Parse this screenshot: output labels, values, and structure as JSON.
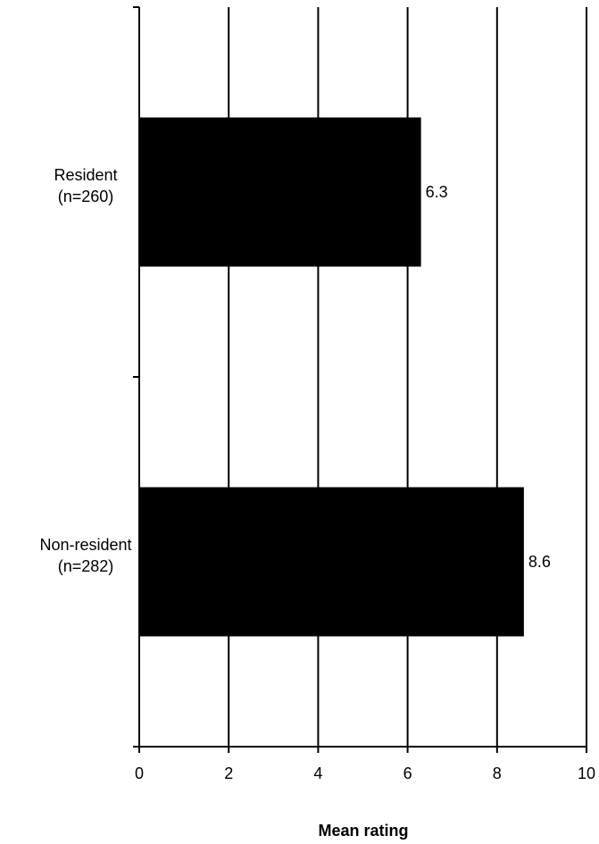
{
  "chart_data": {
    "type": "bar",
    "orientation": "horizontal",
    "categories": [
      [
        "Resident",
        "(n=260)"
      ],
      [
        "Non-resident",
        "(n=282)"
      ]
    ],
    "values": [
      6.3,
      8.6
    ],
    "data_labels": [
      "6.3",
      "8.6"
    ],
    "xlabel": "Mean rating",
    "xlim": [
      0,
      10
    ],
    "xticks": [
      0,
      2,
      4,
      6,
      8,
      10
    ],
    "xtick_labels": [
      "0",
      "2",
      "4",
      "6",
      "8",
      "10"
    ],
    "grid": "vertical",
    "bar_color": "#000000"
  }
}
